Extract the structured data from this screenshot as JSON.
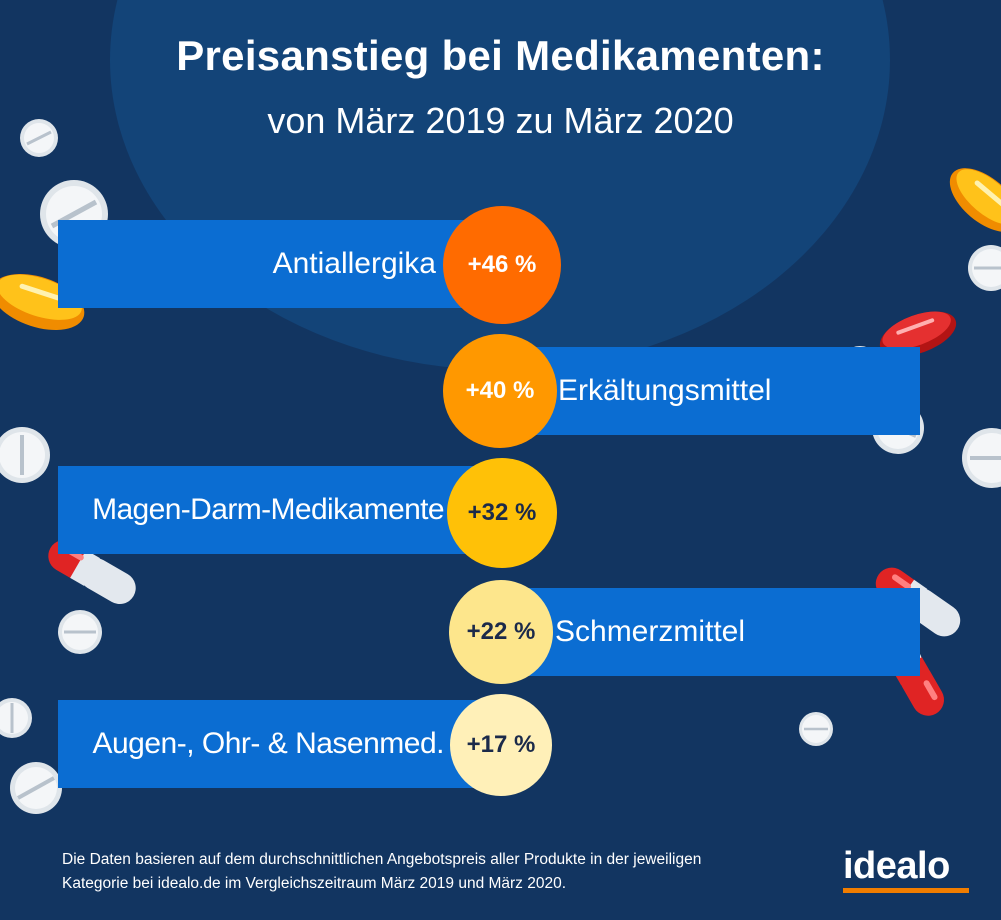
{
  "title": "Preisanstieg bei Medikamenten:",
  "subtitle": "von März 2019 zu März 2020",
  "chart_data": {
    "type": "bar",
    "title": "Preisanstieg bei Medikamenten:",
    "subtitle": "von März 2019 zu März 2020",
    "categories": [
      "Antiallergika",
      "Erkältungsmittel",
      "Magen-Darm-Medikamente",
      "Schmerzmittel",
      "Augen-, Ohr- & Nasenmed."
    ],
    "values": [
      46,
      40,
      32,
      22,
      17
    ],
    "value_labels": [
      "+46 %",
      "+40 %",
      "+32 %",
      "+22 %",
      "+17 %"
    ],
    "unit": "%",
    "badge_colors": [
      "#ff6b00",
      "#ff9800",
      "#ffc107",
      "#fde68c",
      "#fff0b8"
    ],
    "bar_color": "#0b6dd2"
  },
  "footnote": "Die Daten basieren auf dem durchschnittlichen Angebotspreis aller Produkte in der jeweiligen Kategorie bei idealo.de im Vergleichszeitraum März 2019 und März 2020.",
  "logo": "idealo",
  "colors": {
    "background": "#123561",
    "accent": "#f07d00"
  }
}
